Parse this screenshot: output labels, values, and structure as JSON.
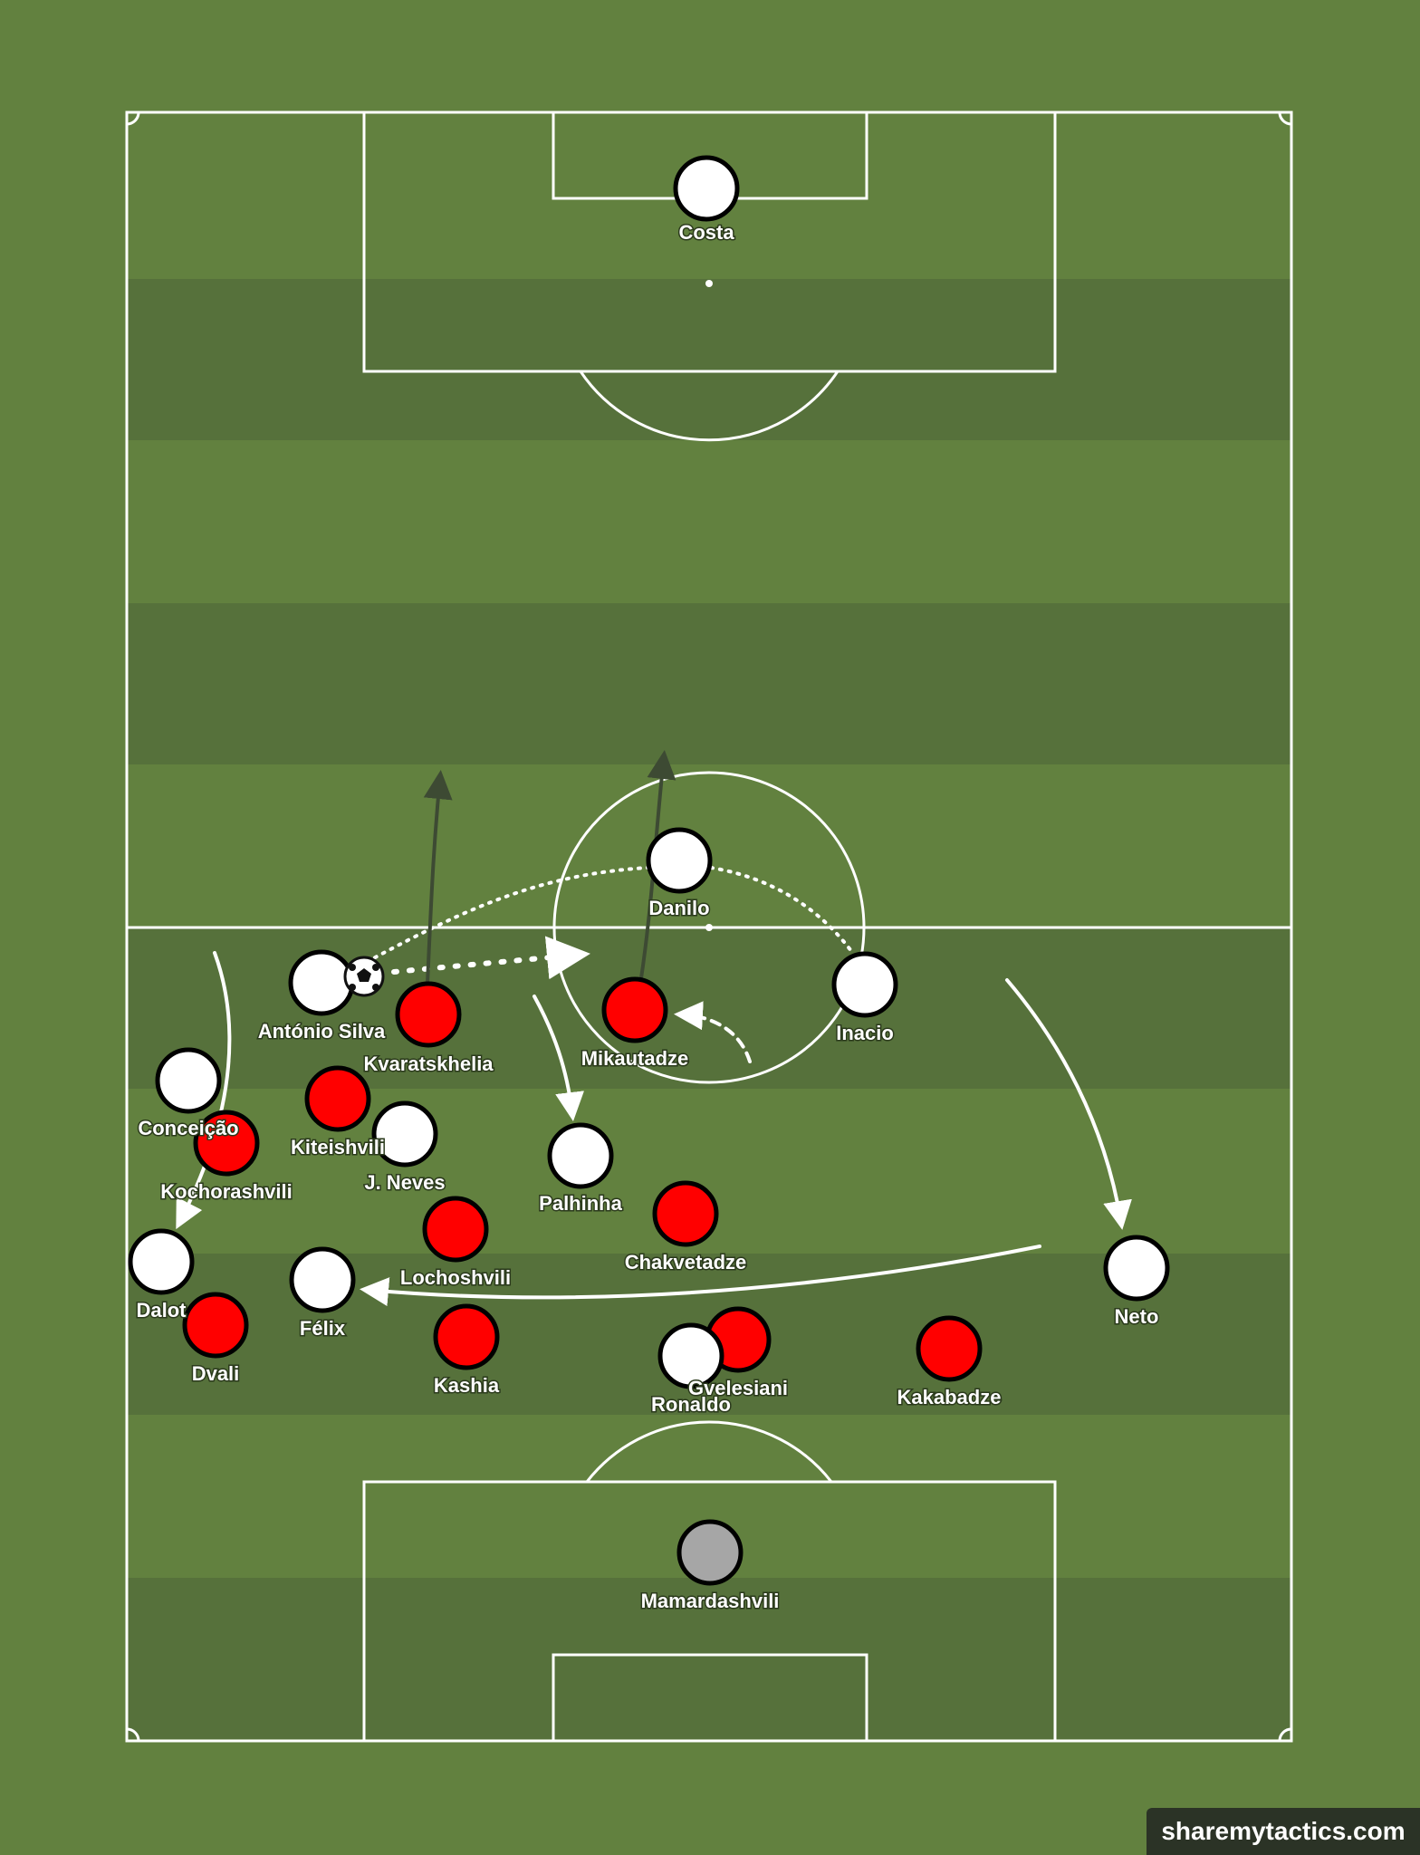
{
  "watermark": "sharemytactics.com",
  "colors": {
    "grass_light": "#62813f",
    "grass_dark": "#56713b",
    "lines": "#ffffff",
    "team_white": "#ffffff",
    "team_red": "#ff0000",
    "goalkeeper_grey": "#a6a6a6",
    "run_arrow_dark": "#3d4a33"
  },
  "players": [
    {
      "label": "Costa",
      "team": "white"
    },
    {
      "label": "Danilo",
      "team": "white"
    },
    {
      "label": "António Silva",
      "team": "white"
    },
    {
      "label": "Inacio",
      "team": "white"
    },
    {
      "label": "Conceição",
      "team": "white"
    },
    {
      "label": "J. Neves",
      "team": "white"
    },
    {
      "label": "Palhinha",
      "team": "white"
    },
    {
      "label": "Dalot",
      "team": "white"
    },
    {
      "label": "Félix",
      "team": "white"
    },
    {
      "label": "Neto",
      "team": "white"
    },
    {
      "label": "Ronaldo",
      "team": "white"
    },
    {
      "label": "Kvaratskhelia",
      "team": "red"
    },
    {
      "label": "Mikautadze",
      "team": "red"
    },
    {
      "label": "Kiteishvili",
      "team": "red"
    },
    {
      "label": "Kochorashvili",
      "team": "red"
    },
    {
      "label": "Lochoshvili",
      "team": "red"
    },
    {
      "label": "Chakvetadze",
      "team": "red"
    },
    {
      "label": "Dvali",
      "team": "red"
    },
    {
      "label": "Kashia",
      "team": "red"
    },
    {
      "label": "Gvelesiani",
      "team": "red"
    },
    {
      "label": "Kakabadze",
      "team": "red"
    },
    {
      "label": "Mamardashvili",
      "team": "grey"
    }
  ]
}
